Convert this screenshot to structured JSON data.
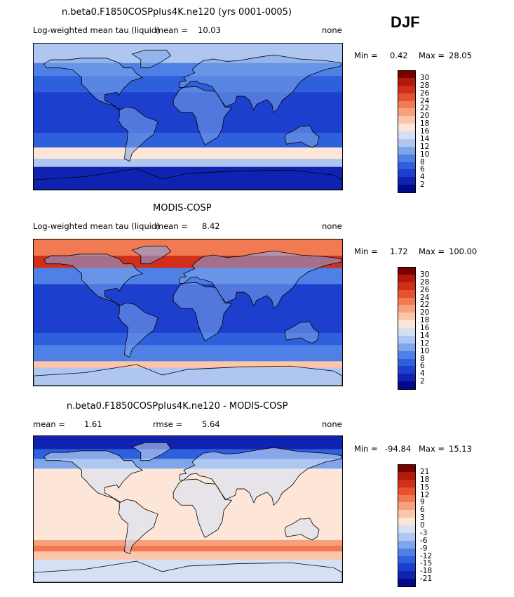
{
  "season": "DJF",
  "panels": [
    {
      "id": "model",
      "title": "n.beta0.F1850COSPplus4K.ne120 (yrs 0001-0005)",
      "variable": "Log-weighted mean tau (liquid)",
      "stat1_label": "mean =",
      "stat1_value": "10.03",
      "stat2_label": "",
      "stat2_value": "",
      "units": "none",
      "min_label": "Min =",
      "min_value": "0.42",
      "max_label": "Max =",
      "max_value": "28.05",
      "scale": "abs",
      "colorbar_ticks": [
        "30",
        "28",
        "26",
        "24",
        "22",
        "20",
        "18",
        "16",
        "14",
        "12",
        "10",
        "8",
        "6",
        "4",
        "2"
      ]
    },
    {
      "id": "obs",
      "title": "MODIS-COSP",
      "variable": "Log-weighted mean tau (liquid)",
      "stat1_label": "mean =",
      "stat1_value": "8.42",
      "stat2_label": "",
      "stat2_value": "",
      "units": "none",
      "min_label": "Min =",
      "min_value": "1.72",
      "max_label": "Max =",
      "max_value": "100.00",
      "scale": "abs",
      "colorbar_ticks": [
        "30",
        "28",
        "26",
        "24",
        "22",
        "20",
        "18",
        "16",
        "14",
        "12",
        "10",
        "8",
        "6",
        "4",
        "2"
      ]
    },
    {
      "id": "diff",
      "title": "n.beta0.F1850COSPplus4K.ne120 - MODIS-COSP",
      "variable": "",
      "stat1_label": "mean =",
      "stat1_value": "1.61",
      "stat2_label": "rmse =",
      "stat2_value": "5.64",
      "units": "none",
      "min_label": "Min =",
      "min_value": "-94.84",
      "max_label": "Max =",
      "max_value": "15.13",
      "scale": "diff",
      "colorbar_ticks": [
        "21",
        "18",
        "15",
        "12",
        "9",
        "6",
        "3",
        "0",
        "-3",
        "-6",
        "-9",
        "-12",
        "-15",
        "-18",
        "-21"
      ]
    }
  ],
  "palettes": {
    "abs": [
      "#7a0000",
      "#b01a0a",
      "#d0301a",
      "#e4522e",
      "#f17a52",
      "#f7a07c",
      "#fbc6aa",
      "#fde6d8",
      "#d4e1f5",
      "#aec6f0",
      "#7fa6ea",
      "#4f80e6",
      "#2e5fdc",
      "#1c3fce",
      "#0f23b0",
      "#020a8a"
    ],
    "diff": [
      "#7a0000",
      "#b01a0a",
      "#d0301a",
      "#e4522e",
      "#f17a52",
      "#f7a07c",
      "#fbc6aa",
      "#fde6d8",
      "#d4e1f5",
      "#aec6f0",
      "#7fa6ea",
      "#4f80e6",
      "#2e5fdc",
      "#1c3fce",
      "#0f23b0",
      "#020a8a"
    ]
  }
}
